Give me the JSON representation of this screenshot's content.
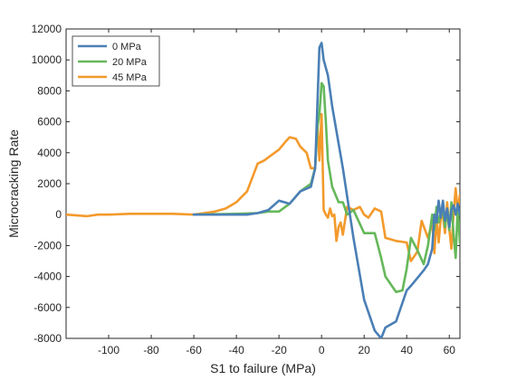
{
  "chart_data": {
    "type": "line",
    "title": "",
    "xlabel": "S1 to failure (MPa)",
    "ylabel": "Microcracking Rate",
    "xlim": [
      -120,
      65
    ],
    "ylim": [
      -8000,
      12000
    ],
    "xticks": [
      -100,
      -80,
      -60,
      -40,
      -20,
      0,
      20,
      40,
      60
    ],
    "yticks": [
      -8000,
      -6000,
      -4000,
      -2000,
      0,
      2000,
      4000,
      6000,
      8000,
      10000,
      12000
    ],
    "grid": false,
    "legend_position": "top-left",
    "series": [
      {
        "name": "0 MPa",
        "color": "#4a7fb5",
        "x": [
          -60,
          -40,
          -35,
          -30,
          -25,
          -20,
          -15,
          -10,
          -5,
          -3,
          -2,
          -1,
          0,
          1,
          3,
          5,
          10,
          15,
          20,
          25,
          28,
          30,
          35,
          40,
          42,
          45,
          48,
          50,
          52,
          53,
          54,
          55,
          56,
          57,
          58,
          59,
          60,
          61,
          62,
          63,
          64,
          65
        ],
        "y": [
          0,
          0,
          0,
          100,
          300,
          900,
          700,
          1500,
          1800,
          3000,
          7000,
          10800,
          11100,
          10000,
          9000,
          7000,
          3000,
          -1500,
          -5500,
          -7500,
          -8000,
          -7300,
          -6900,
          -4900,
          -4600,
          -4100,
          -3600,
          -3200,
          -2200,
          0,
          -500,
          900,
          -200,
          900,
          -400,
          400,
          -800,
          300,
          600,
          0,
          700,
          0
        ]
      },
      {
        "name": "20 MPa",
        "color": "#65b85a",
        "x": [
          -60,
          -40,
          -30,
          -25,
          -20,
          -15,
          -10,
          -5,
          -3,
          -2,
          -1,
          0,
          1,
          2,
          3,
          5,
          8,
          10,
          12,
          15,
          20,
          25,
          28,
          30,
          35,
          38,
          40,
          42,
          45,
          48,
          50,
          52,
          53,
          54,
          55,
          56,
          57,
          58,
          59,
          60,
          61,
          62,
          63,
          64,
          65
        ],
        "y": [
          0,
          50,
          100,
          200,
          200,
          700,
          1500,
          2000,
          3000,
          5600,
          6500,
          8500,
          8300,
          6000,
          3500,
          1800,
          800,
          800,
          0,
          300,
          -1200,
          -1200,
          -2800,
          -4000,
          -5000,
          -4900,
          -3500,
          -1500,
          -2300,
          -3200,
          -2000,
          0,
          -1000,
          500,
          -500,
          0,
          400,
          -800,
          300,
          -1000,
          800,
          -1200,
          -2800,
          500,
          -1800
        ]
      },
      {
        "name": "45 MPa",
        "color": "#f39a2c",
        "x": [
          -120,
          -110,
          -105,
          -100,
          -90,
          -80,
          -70,
          -60,
          -55,
          -50,
          -45,
          -40,
          -35,
          -30,
          -27,
          -25,
          -20,
          -17,
          -15,
          -12,
          -10,
          -7,
          -5,
          -3,
          -2,
          -1,
          0,
          1,
          2,
          3,
          4,
          5,
          6,
          7,
          8,
          9,
          10,
          12,
          15,
          18,
          20,
          22,
          25,
          28,
          30,
          35,
          40,
          42,
          43,
          45,
          47,
          50,
          52,
          53,
          54,
          55,
          56,
          57,
          58,
          59,
          60,
          61,
          62,
          63,
          64,
          65
        ],
        "y": [
          0,
          -100,
          0,
          0,
          50,
          50,
          50,
          0,
          100,
          200,
          400,
          800,
          1500,
          3300,
          3500,
          3700,
          4200,
          4700,
          5000,
          4900,
          4400,
          4000,
          3000,
          3000,
          6000,
          3500,
          6500,
          300,
          0,
          -200,
          400,
          -100,
          0,
          -1700,
          -800,
          -500,
          -1300,
          500,
          300,
          500,
          0,
          -200,
          400,
          200,
          -1500,
          -1700,
          -1800,
          -3000,
          -2800,
          -2400,
          -400,
          -1500,
          -500,
          -2500,
          -200,
          -1800,
          -300,
          0,
          -1200,
          800,
          -900,
          -2200,
          0,
          1700,
          200,
          1300
        ]
      }
    ]
  }
}
